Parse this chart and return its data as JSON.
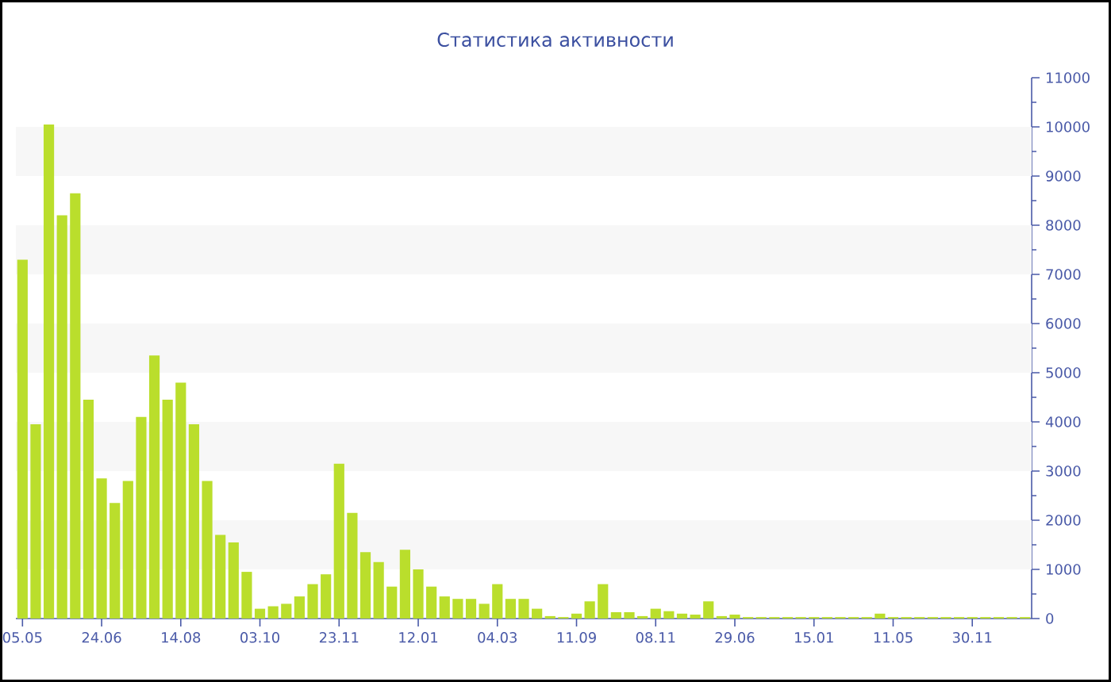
{
  "chart_data": {
    "type": "bar",
    "title": "Статистика активности",
    "categories": [
      "05.05",
      null,
      null,
      null,
      null,
      null,
      "24.06",
      null,
      null,
      null,
      null,
      null,
      "14.08",
      null,
      null,
      null,
      null,
      null,
      "03.10",
      null,
      null,
      null,
      null,
      null,
      "23.11",
      null,
      null,
      null,
      null,
      null,
      "12.01",
      null,
      null,
      null,
      null,
      null,
      "04.03",
      null,
      null,
      null,
      null,
      null,
      "11.09",
      null,
      null,
      null,
      null,
      null,
      "08.11",
      null,
      null,
      null,
      null,
      null,
      "29.06",
      null,
      null,
      null,
      null,
      null,
      "15.01",
      null,
      null,
      null,
      null,
      null,
      "11.05",
      null,
      null,
      null,
      null,
      null,
      "30.11",
      null,
      null,
      null,
      null
    ],
    "values": [
      7300,
      3950,
      10050,
      8200,
      8650,
      4450,
      2850,
      2350,
      2800,
      4100,
      5350,
      4450,
      4800,
      3950,
      2800,
      1700,
      1550,
      950,
      200,
      250,
      300,
      450,
      700,
      900,
      3150,
      2150,
      1350,
      1150,
      650,
      1400,
      1000,
      650,
      450,
      400,
      400,
      300,
      700,
      400,
      400,
      200,
      50,
      30,
      100,
      350,
      700,
      130,
      130,
      50,
      200,
      150,
      100,
      80,
      350,
      50,
      80,
      30,
      30,
      30,
      30,
      30,
      30,
      30,
      30,
      30,
      30,
      100,
      30,
      30,
      30,
      30,
      30,
      30,
      30,
      30,
      30,
      30,
      30
    ],
    "color": "#bade2c",
    "ylim": [
      0,
      11000
    ],
    "yticks": [
      0,
      1000,
      2000,
      3000,
      4000,
      5000,
      6000,
      7000,
      8000,
      9000,
      10000,
      11000
    ],
    "bands": [
      {
        "axis": "y",
        "from": 1000,
        "to": 2000,
        "color": "#f7f7f7"
      },
      {
        "axis": "y",
        "from": 3000,
        "to": 4000,
        "color": "#f7f7f7"
      },
      {
        "axis": "y",
        "from": 5000,
        "to": 6000,
        "color": "#f7f7f7"
      },
      {
        "axis": "y",
        "from": 7000,
        "to": 8000,
        "color": "#f7f7f7"
      },
      {
        "axis": "y",
        "from": 9000,
        "to": 10000,
        "color": "#f7f7f7"
      }
    ]
  }
}
